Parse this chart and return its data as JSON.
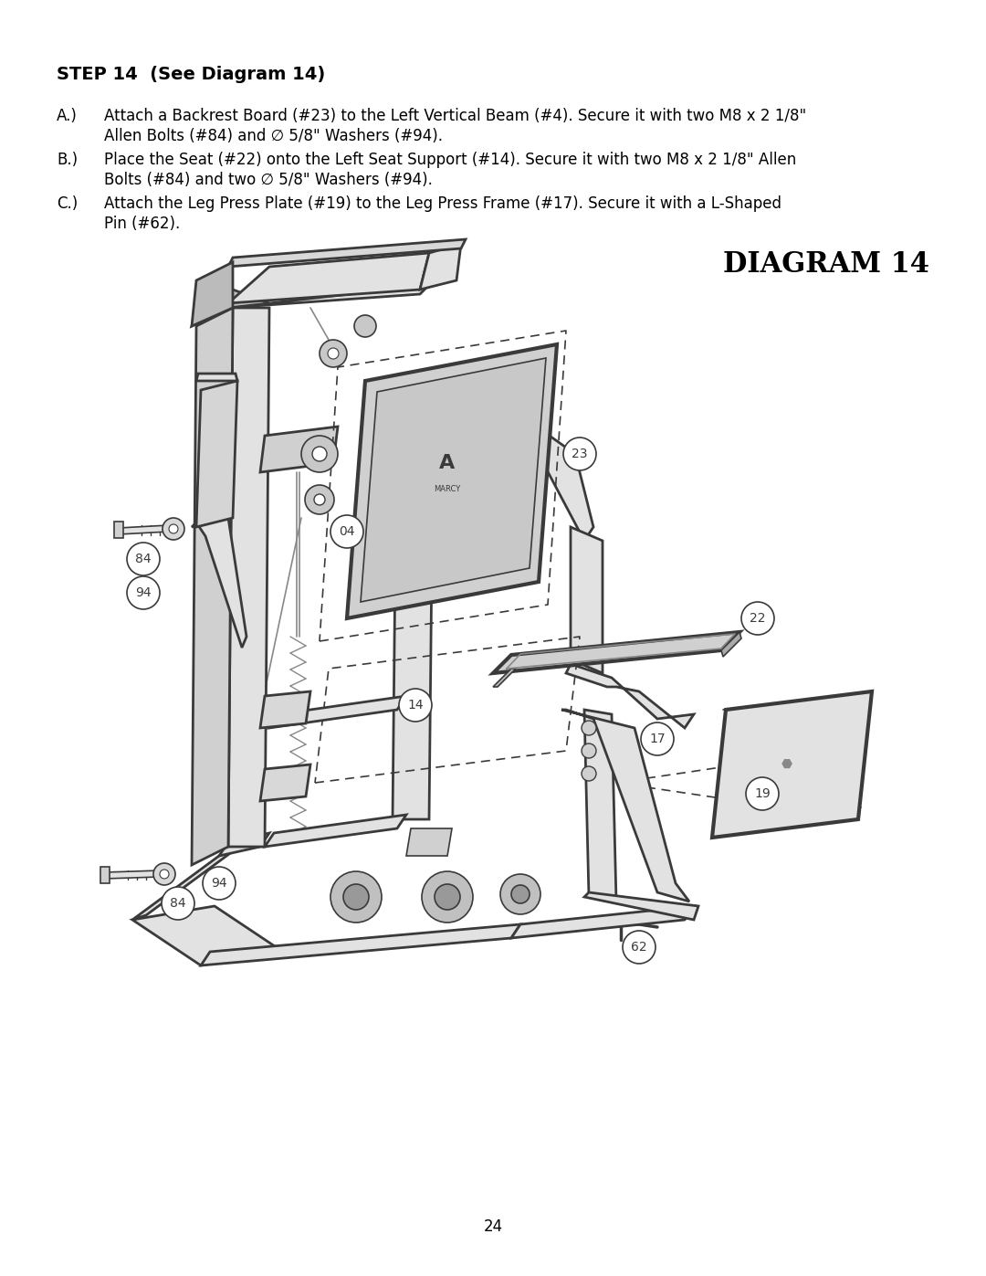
{
  "page_num": "24",
  "step_title": "STEP 14  (See Diagram 14)",
  "instr_A_line1": "Attach a Backrest Board (#23) to the Left Vertical Beam (#4). Secure it with two M8 x 2 1/8\"",
  "instr_A_line2": "Allen Bolts (#84) and ∅ 5/8\" Washers (#94).",
  "instr_B_line1": "Place the Seat (#22) onto the Left Seat Support (#14). Secure it with two M8 x 2 1/8\" Allen",
  "instr_B_line2": "Bolts (#84) and two ∅ 5/8\" Washers (#94).",
  "instr_C_line1": "Attach the Leg Press Plate (#19) to the Leg Press Frame (#17). Secure it with a L-Shaped",
  "instr_C_line2": "Pin (#62).",
  "diagram_title": "DIAGRAM 14",
  "background_color": "#ffffff",
  "text_color": "#000000",
  "gray": "#3a3a3a",
  "lgray": "#888888",
  "fill_gray": "#c8c8c8",
  "fill_light": "#e2e2e2"
}
